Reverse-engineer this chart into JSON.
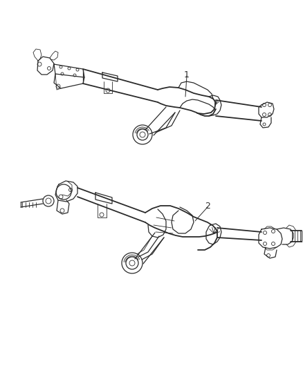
{
  "background_color": "#ffffff",
  "line_color": "#2a2a2a",
  "label1": "1",
  "label2": "2",
  "figsize": [
    4.38,
    5.33
  ],
  "dpi": 100
}
